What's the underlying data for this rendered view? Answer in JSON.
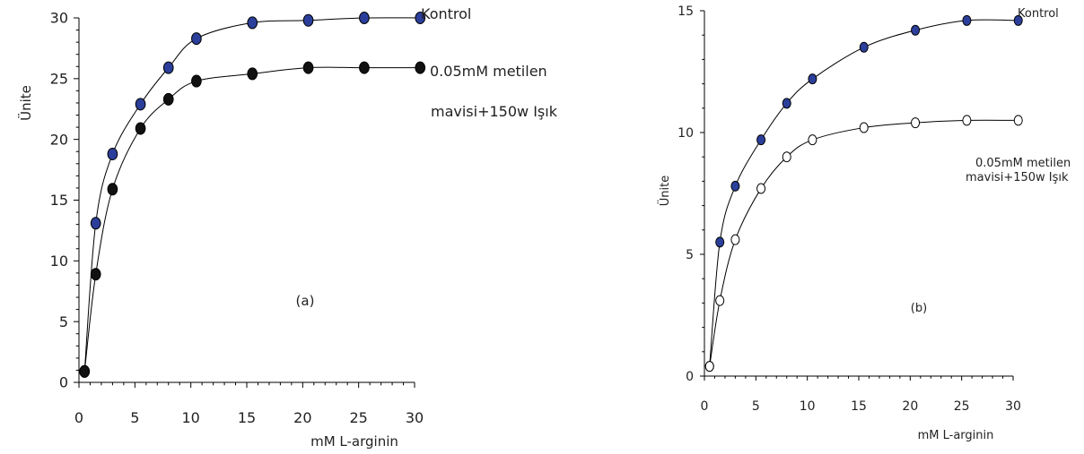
{
  "chart_data": [
    {
      "type": "scatter",
      "panel_label": "(a)",
      "xlabel": "mM L-arginin",
      "ylabel": "Ünite",
      "xlim": [
        0,
        30
      ],
      "ylim": [
        0,
        30
      ],
      "xticks": [
        "0",
        "5",
        "10",
        "15",
        "20",
        "25",
        "30"
      ],
      "yticks": [
        "0",
        "5",
        "10",
        "15",
        "20",
        "25",
        "30"
      ],
      "grid": false,
      "series": [
        {
          "name": "Kontrol",
          "marker": "filled",
          "color": "#2b3f9a",
          "x": [
            0.5,
            1.5,
            3,
            5.5,
            8,
            10.5,
            15.5,
            20.5,
            25.5,
            30.5
          ],
          "y": [
            0.9,
            13.1,
            18.8,
            22.9,
            25.9,
            28.3,
            29.6,
            29.8,
            30.0,
            30.0
          ]
        },
        {
          "name_lines": [
            "0.05mM metilen",
            "mavisi+150w Işık"
          ],
          "marker": "filled",
          "color": "#111111",
          "x": [
            0.5,
            1.5,
            3,
            5.5,
            8,
            10.5,
            15.5,
            20.5,
            25.5,
            30.5
          ],
          "y": [
            0.9,
            8.9,
            15.9,
            20.9,
            23.3,
            24.8,
            25.4,
            25.9,
            25.9,
            25.9
          ]
        }
      ]
    },
    {
      "type": "scatter",
      "panel_label": "(b)",
      "xlabel": "mM L-arginin",
      "ylabel": "Ünite",
      "xlim": [
        0,
        30
      ],
      "ylim": [
        0,
        15
      ],
      "xticks": [
        "0",
        "5",
        "10",
        "15",
        "20",
        "25",
        "30"
      ],
      "yticks": [
        "0",
        "5",
        "10",
        "15"
      ],
      "grid": false,
      "series": [
        {
          "name": "Kontrol",
          "marker": "filled",
          "color": "#2b3f9a",
          "x": [
            0.5,
            1.5,
            3,
            5.5,
            8,
            10.5,
            15.5,
            20.5,
            25.5,
            30.5
          ],
          "y": [
            0.4,
            5.5,
            7.8,
            9.7,
            11.2,
            12.2,
            13.5,
            14.2,
            14.6,
            14.6
          ]
        },
        {
          "name_lines": [
            "0.05mM metilen",
            "mavisi+150w Işık"
          ],
          "marker": "open",
          "color": "#111111",
          "x": [
            0.5,
            1.5,
            3,
            5.5,
            8,
            10.5,
            15.5,
            20.5,
            25.5,
            30.5
          ],
          "y": [
            0.4,
            3.1,
            5.6,
            7.7,
            9.0,
            9.7,
            10.2,
            10.4,
            10.5,
            10.5
          ]
        }
      ]
    }
  ]
}
